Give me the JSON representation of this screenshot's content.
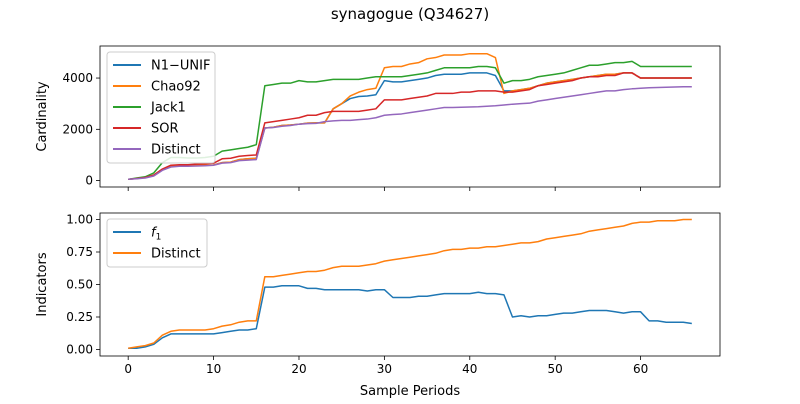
{
  "figure_title": "synagogue (Q34627)",
  "chart_data": [
    {
      "type": "line",
      "ylabel": "Cardinality",
      "xlim": [
        -3.3,
        69.3
      ],
      "ylim": [
        -250,
        5250
      ],
      "yticks": [
        0,
        2000,
        4000
      ],
      "xticks": [
        0,
        10,
        20,
        30,
        40,
        50,
        60
      ],
      "show_xtick_labels": false,
      "legend_position": "upper-left",
      "x_start": 0,
      "series": [
        {
          "name": "N1−UNIF",
          "color": "#1f77b4",
          "values": [
            50,
            80,
            120,
            200,
            420,
            560,
            580,
            590,
            600,
            600,
            610,
            700,
            720,
            820,
            850,
            870,
            2050,
            2080,
            2150,
            2170,
            2200,
            2240,
            2250,
            2250,
            2800,
            3000,
            3200,
            3280,
            3300,
            3350,
            3900,
            3850,
            3850,
            3900,
            3950,
            4000,
            4100,
            4150,
            4150,
            4150,
            4200,
            4200,
            4200,
            4100,
            3500,
            3500,
            3550,
            3600,
            3700,
            3800,
            3850,
            3900,
            3950,
            4000,
            4050,
            4100,
            4150,
            4150,
            4200,
            4200,
            4000,
            4000,
            4000,
            4000,
            4000,
            4000,
            4000
          ]
        },
        {
          "name": "Chao92",
          "color": "#ff7f0e",
          "values": [
            50,
            80,
            120,
            200,
            420,
            560,
            580,
            590,
            600,
            600,
            610,
            700,
            720,
            820,
            850,
            870,
            2050,
            2080,
            2150,
            2170,
            2200,
            2240,
            2250,
            2250,
            2800,
            3000,
            3300,
            3450,
            3550,
            3600,
            4400,
            4450,
            4450,
            4550,
            4600,
            4750,
            4800,
            4900,
            4900,
            4900,
            4950,
            4950,
            4950,
            4800,
            3400,
            3500,
            3550,
            3600,
            3700,
            3800,
            3850,
            3900,
            3950,
            4000,
            4050,
            4100,
            4150,
            4150,
            4200,
            4200,
            4000,
            4000,
            4000,
            4000,
            4000,
            4000,
            4000
          ]
        },
        {
          "name": "Jack1",
          "color": "#2ca02c",
          "values": [
            50,
            100,
            150,
            300,
            700,
            900,
            900,
            880,
            880,
            900,
            950,
            1150,
            1200,
            1250,
            1300,
            1400,
            3700,
            3750,
            3800,
            3800,
            3900,
            3850,
            3850,
            3900,
            3950,
            3950,
            3950,
            3950,
            4000,
            4050,
            4050,
            4050,
            4050,
            4100,
            4150,
            4200,
            4300,
            4400,
            4400,
            4400,
            4400,
            4450,
            4450,
            4400,
            3800,
            3900,
            3900,
            3950,
            4050,
            4100,
            4150,
            4200,
            4300,
            4400,
            4500,
            4500,
            4550,
            4600,
            4600,
            4650,
            4450,
            4450,
            4450,
            4450,
            4450,
            4450,
            4450
          ]
        },
        {
          "name": "SOR",
          "color": "#d62728",
          "values": [
            50,
            80,
            120,
            220,
            450,
            600,
            620,
            620,
            640,
            650,
            680,
            850,
            870,
            950,
            980,
            1000,
            2250,
            2300,
            2350,
            2400,
            2450,
            2550,
            2550,
            2650,
            2700,
            2700,
            2700,
            2700,
            2750,
            2800,
            3150,
            3150,
            3150,
            3200,
            3250,
            3300,
            3400,
            3400,
            3400,
            3450,
            3450,
            3500,
            3500,
            3500,
            3450,
            3450,
            3500,
            3550,
            3700,
            3750,
            3800,
            3850,
            3900,
            4000,
            4050,
            4050,
            4100,
            4100,
            4200,
            4200,
            4000,
            4000,
            4000,
            4000,
            4000,
            4000,
            4000
          ]
        },
        {
          "name": "Distinct",
          "color": "#9467bd",
          "values": [
            50,
            70,
            100,
            180,
            400,
            530,
            560,
            560,
            570,
            580,
            600,
            680,
            700,
            780,
            800,
            820,
            2050,
            2070,
            2120,
            2150,
            2200,
            2220,
            2230,
            2300,
            2330,
            2350,
            2350,
            2380,
            2400,
            2450,
            2550,
            2580,
            2600,
            2650,
            2700,
            2750,
            2800,
            2850,
            2850,
            2860,
            2870,
            2880,
            2900,
            2920,
            2950,
            2980,
            3000,
            3020,
            3100,
            3150,
            3200,
            3250,
            3300,
            3350,
            3400,
            3450,
            3500,
            3500,
            3550,
            3580,
            3600,
            3620,
            3630,
            3640,
            3650,
            3660,
            3660
          ]
        }
      ]
    },
    {
      "type": "line",
      "ylabel": "Indicators",
      "xlabel": "Sample Periods",
      "xlim": [
        -3.3,
        69.3
      ],
      "ylim": [
        -0.05,
        1.05
      ],
      "yticks": [
        0.0,
        0.25,
        0.5,
        0.75,
        1.0
      ],
      "ytick_labels": [
        "0.00",
        "0.25",
        "0.50",
        "0.75",
        "1.00"
      ],
      "xticks": [
        0,
        10,
        20,
        30,
        40,
        50,
        60
      ],
      "legend_position": "upper-left",
      "x_start": 0,
      "series": [
        {
          "name": "f",
          "name_sub": "1",
          "color": "#1f77b4",
          "values": [
            0.01,
            0.01,
            0.02,
            0.04,
            0.09,
            0.12,
            0.12,
            0.12,
            0.12,
            0.12,
            0.12,
            0.13,
            0.14,
            0.15,
            0.15,
            0.16,
            0.48,
            0.48,
            0.49,
            0.49,
            0.49,
            0.47,
            0.47,
            0.46,
            0.46,
            0.46,
            0.46,
            0.46,
            0.45,
            0.46,
            0.46,
            0.4,
            0.4,
            0.4,
            0.41,
            0.41,
            0.42,
            0.43,
            0.43,
            0.43,
            0.43,
            0.44,
            0.43,
            0.43,
            0.42,
            0.25,
            0.26,
            0.25,
            0.26,
            0.26,
            0.27,
            0.28,
            0.28,
            0.29,
            0.3,
            0.3,
            0.3,
            0.29,
            0.28,
            0.29,
            0.29,
            0.22,
            0.22,
            0.21,
            0.21,
            0.21,
            0.2
          ]
        },
        {
          "name": "Distinct",
          "name_sub": "",
          "color": "#ff7f0e",
          "values": [
            0.01,
            0.02,
            0.03,
            0.05,
            0.11,
            0.14,
            0.15,
            0.15,
            0.15,
            0.15,
            0.16,
            0.18,
            0.19,
            0.21,
            0.22,
            0.22,
            0.56,
            0.56,
            0.57,
            0.58,
            0.59,
            0.6,
            0.6,
            0.61,
            0.63,
            0.64,
            0.64,
            0.64,
            0.65,
            0.66,
            0.68,
            0.69,
            0.7,
            0.71,
            0.72,
            0.73,
            0.74,
            0.76,
            0.77,
            0.77,
            0.78,
            0.78,
            0.79,
            0.79,
            0.8,
            0.81,
            0.82,
            0.82,
            0.83,
            0.85,
            0.86,
            0.87,
            0.88,
            0.89,
            0.91,
            0.92,
            0.93,
            0.94,
            0.95,
            0.97,
            0.98,
            0.98,
            0.99,
            0.99,
            0.99,
            1.0,
            1.0
          ]
        }
      ]
    }
  ]
}
